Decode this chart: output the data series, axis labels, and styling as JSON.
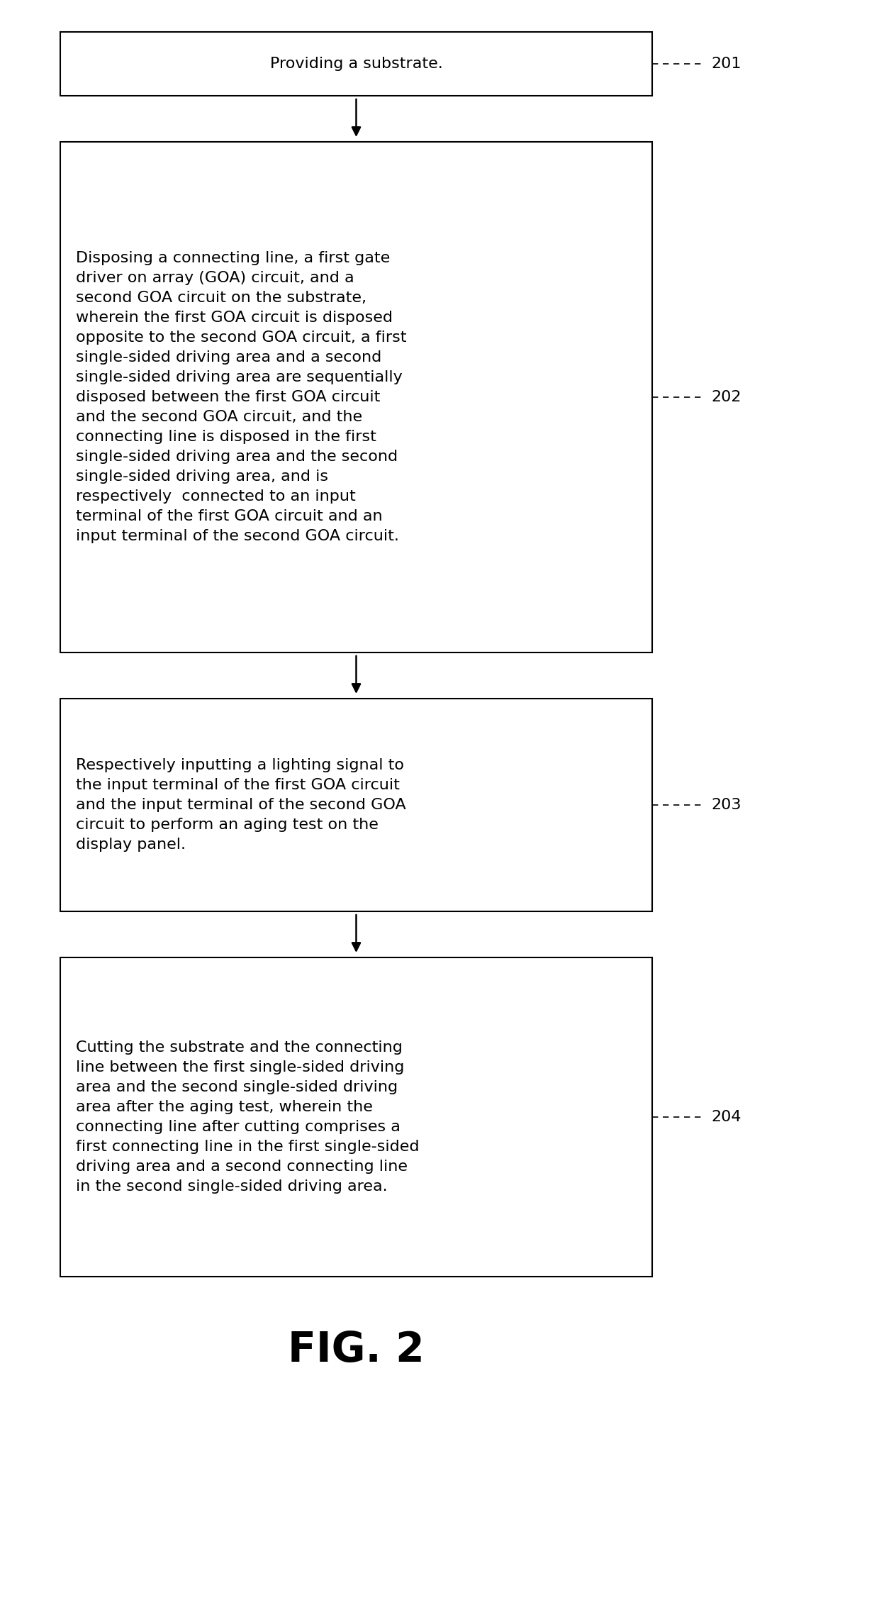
{
  "background_color": "#ffffff",
  "box_edge_color": "#000000",
  "box_face_color": "#ffffff",
  "text_color": "#000000",
  "arrow_color": "#000000",
  "label_color": "#000000",
  "boxes": [
    {
      "id": 201,
      "label": "201",
      "text": "Providing a substrate.",
      "align": "center",
      "fontsize": 16,
      "label_fontsize": 16
    },
    {
      "id": 202,
      "label": "202",
      "text": "Disposing a connecting line, a first gate\ndriver on array (GOA) circuit, and a\nsecond GOA circuit on the substrate,\nwherein the first GOA circuit is disposed\nopposite to the second GOA circuit, a first\nsingle-sided driving area and a second\nsingle-sided driving area are sequentially\ndisposed between the first GOA circuit\nand the second GOA circuit, and the\nconnecting line is disposed in the first\nsingle-sided driving area and the second\nsingle-sided driving area, and is\nrespectively  connected to an input\nterminal of the first GOA circuit and an\ninput terminal of the second GOA circuit.",
      "align": "left",
      "fontsize": 16,
      "label_fontsize": 16
    },
    {
      "id": 203,
      "label": "203",
      "text": "Respectively inputting a lighting signal to\nthe input terminal of the first GOA circuit\nand the input terminal of the second GOA\ncircuit to perform an aging test on the\ndisplay panel.",
      "align": "left",
      "fontsize": 16,
      "label_fontsize": 16
    },
    {
      "id": 204,
      "label": "204",
      "text": "Cutting the substrate and the connecting\nline between the first single-sided driving\narea and the second single-sided driving\narea after the aging test, wherein the\nconnecting line after cutting comprises a\nfirst connecting line in the first single-sided\ndriving area and a second connecting line\nin the second single-sided driving area.",
      "align": "left",
      "fontsize": 16,
      "label_fontsize": 16
    }
  ],
  "fig_label": "FIG. 2",
  "fig_label_fontsize": 42
}
